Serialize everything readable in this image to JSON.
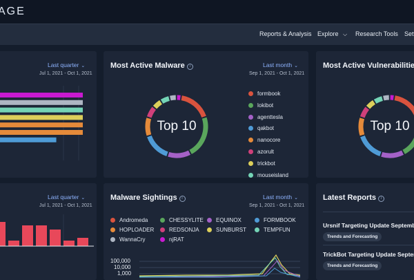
{
  "app": {
    "brand": "AGE"
  },
  "nav": {
    "items": [
      "Reports & Analysis",
      "Explore",
      "Research Tools",
      "Sett"
    ]
  },
  "cards": {
    "top_left": {
      "period": "Last quarter",
      "range": "Jul 1, 2021 - Oct 1, 2021"
    },
    "malware": {
      "title": "Most Active Malware",
      "period": "Last month",
      "range": "Sep 1, 2021 - Oct 1, 2021",
      "center": "Top 10",
      "legend": [
        {
          "name": "formbook",
          "color": "#d9533e"
        },
        {
          "name": "lokibot",
          "color": "#5aa65c"
        },
        {
          "name": "agenttesla",
          "color": "#a461c7"
        },
        {
          "name": "qakbot",
          "color": "#4f9bd6"
        },
        {
          "name": "nanocore",
          "color": "#e58a3a"
        },
        {
          "name": "azorult",
          "color": "#d0407a"
        },
        {
          "name": "trickbot",
          "color": "#dccf5a"
        },
        {
          "name": "mouseisland",
          "color": "#74d4b6"
        }
      ]
    },
    "vulns": {
      "title": "Most Active Vulnerabilities",
      "center": "Top 10"
    },
    "bottom_left": {
      "period": "Last quarter",
      "range": "Jul 1, 2021 - Oct 1, 2021"
    },
    "sightings": {
      "title": "Malware Sightings",
      "period": "Last month",
      "range": "Sep 1, 2021 - Oct 1, 2021",
      "legend": [
        {
          "name": "Andromeda",
          "color": "#d9533e"
        },
        {
          "name": "CHESSYLITE",
          "color": "#5aa65c"
        },
        {
          "name": "EQUINOX",
          "color": "#a461c7"
        },
        {
          "name": "FORMBOOK",
          "color": "#4f9bd6"
        },
        {
          "name": "HOPLOADER",
          "color": "#e58a3a"
        },
        {
          "name": "REDSONJA",
          "color": "#d0407a"
        },
        {
          "name": "SUNBURST",
          "color": "#dccf5a"
        },
        {
          "name": "TEMPFUN",
          "color": "#74d4b6"
        },
        {
          "name": "WannaCry",
          "color": "#aeb6c3"
        },
        {
          "name": "njRAT",
          "color": "#c81ad1"
        }
      ],
      "y_ticks": [
        "100,000",
        "10,000",
        "1,000"
      ]
    },
    "reports": {
      "title": "Latest Reports",
      "items": [
        {
          "title": "Ursnif Targeting Update September",
          "tag": "Trends and Forecasting"
        },
        {
          "title": "TrickBot Targeting Update Septem",
          "tag": "Trends and Forecasting"
        }
      ]
    }
  },
  "chart_data": [
    {
      "type": "bar",
      "orientation": "horizontal",
      "series": [
        {
          "values": [
            100,
            100,
            100,
            100,
            100,
            100,
            69
          ]
        }
      ],
      "colors": [
        "#c81ad1",
        "#aeb6c3",
        "#74d4b6",
        "#dccf5a",
        "#e58a3a",
        "#e58a3a",
        "#4f9bd6"
      ]
    },
    {
      "type": "pie",
      "donut": true,
      "values": [
        14,
        18,
        10,
        12,
        8,
        5,
        4,
        4,
        3,
        2
      ],
      "colors": [
        "#d9533e",
        "#5aa65c",
        "#a461c7",
        "#4f9bd6",
        "#e58a3a",
        "#d0407a",
        "#dccf5a",
        "#74d4b6",
        "#aeb6c3",
        "#c81ad1"
      ]
    },
    {
      "type": "pie",
      "donut": true,
      "values": [
        14,
        18,
        10,
        12,
        8,
        5,
        4,
        4,
        3,
        2
      ],
      "colors": [
        "#d9533e",
        "#5aa65c",
        "#a461c7",
        "#4f9bd6",
        "#e58a3a",
        "#d0407a",
        "#dccf5a",
        "#74d4b6",
        "#aeb6c3",
        "#c81ad1"
      ]
    },
    {
      "type": "bar",
      "values": [
        35,
        8,
        30,
        30,
        24,
        8,
        12,
        0
      ],
      "ylim": [
        0,
        40
      ],
      "colors": [
        "#e8485a"
      ]
    }
  ]
}
